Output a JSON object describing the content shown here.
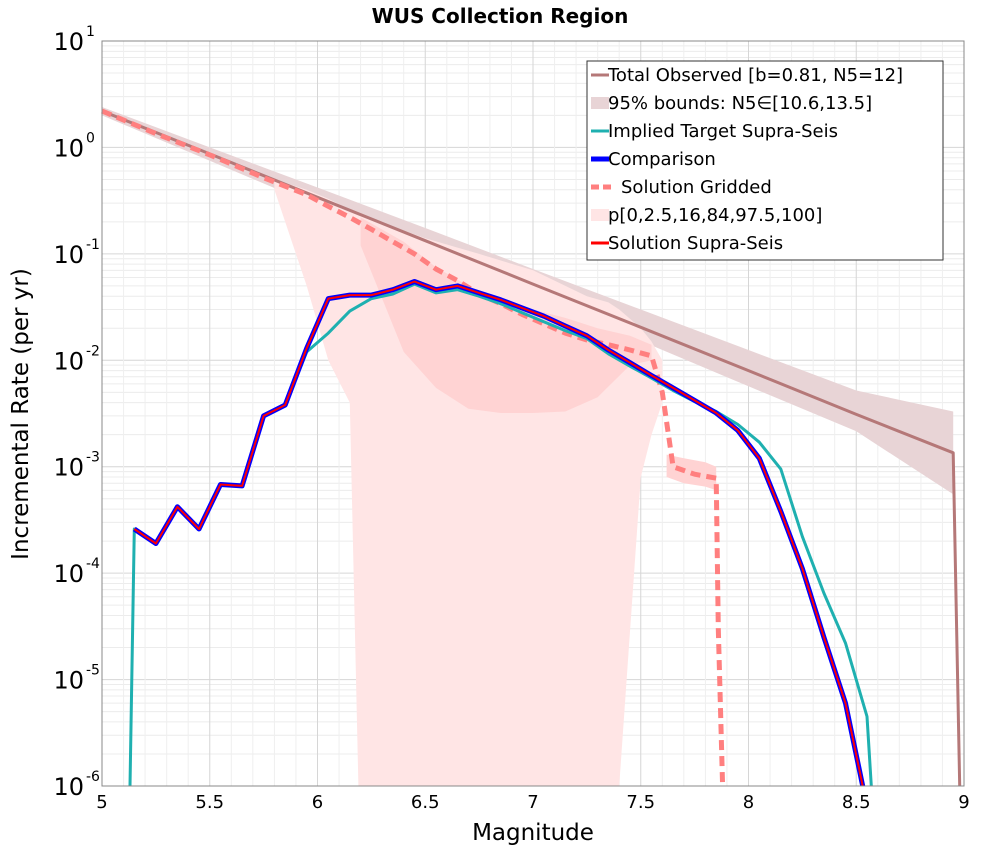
{
  "chart_data": {
    "type": "line",
    "title": "WUS Collection Region",
    "xlabel": "Magnitude",
    "ylabel": "Incremental Rate (per yr)",
    "xlim": [
      5,
      9
    ],
    "ylim_exponents": [
      -6,
      1
    ],
    "y_scale": "log",
    "x_ticks": [
      "5",
      "5.5",
      "6",
      "6.5",
      "7",
      "7.5",
      "8",
      "8.5",
      "9"
    ],
    "y_ticks": [
      {
        "base": "10",
        "exp": "-6",
        "value": 1e-06
      },
      {
        "base": "10",
        "exp": "-5",
        "value": 1e-05
      },
      {
        "base": "10",
        "exp": "-4",
        "value": 0.0001
      },
      {
        "base": "10",
        "exp": "-3",
        "value": 0.001
      },
      {
        "base": "10",
        "exp": "-2",
        "value": 0.01
      },
      {
        "base": "10",
        "exp": "-1",
        "value": 0.1
      },
      {
        "base": "10",
        "exp": "0",
        "value": 1
      },
      {
        "base": "10",
        "exp": "1",
        "value": 10
      }
    ],
    "grid": true,
    "legend_position": "top-right",
    "series": [
      {
        "name": "Total Observed [b=0.81, N5=12]",
        "color": "#b57878",
        "style": "solid",
        "x": [
          5.0,
          5.5,
          6.0,
          6.5,
          7.0,
          7.5,
          8.0,
          8.5,
          8.95,
          8.98
        ],
        "y": [
          2.2,
          0.87,
          0.34,
          0.133,
          0.052,
          0.0204,
          0.008,
          0.0031,
          0.00135,
          1e-06
        ]
      },
      {
        "name": "Implied Target Supra-Seis",
        "color": "#1fb0b0",
        "style": "solid",
        "x": [
          5.13,
          5.15,
          5.25,
          5.35,
          5.45,
          5.55,
          5.65,
          5.75,
          5.85,
          5.95,
          6.05,
          6.15,
          6.25,
          6.35,
          6.45,
          6.55,
          6.65,
          6.75,
          6.85,
          6.95,
          7.05,
          7.15,
          7.25,
          7.35,
          7.45,
          7.55,
          7.65,
          7.75,
          7.85,
          7.95,
          8.05,
          8.15,
          8.25,
          8.35,
          8.45,
          8.55,
          8.57
        ],
        "y": [
          1e-06,
          0.00026,
          0.00019,
          0.00042,
          0.00026,
          0.00068,
          0.00066,
          0.003,
          0.0038,
          0.012,
          0.018,
          0.029,
          0.038,
          0.042,
          0.052,
          0.043,
          0.046,
          0.04,
          0.034,
          0.028,
          0.023,
          0.019,
          0.016,
          0.0115,
          0.0088,
          0.0068,
          0.0052,
          0.0041,
          0.0033,
          0.0025,
          0.0017,
          0.00095,
          0.00022,
          6.5e-05,
          2.2e-05,
          4.5e-06,
          1e-06
        ]
      },
      {
        "name": "Comparison",
        "color": "#0000ff",
        "style": "solid",
        "x": [
          5.15,
          5.25,
          5.35,
          5.45,
          5.55,
          5.65,
          5.75,
          5.85,
          5.95,
          6.05,
          6.15,
          6.25,
          6.35,
          6.45,
          6.55,
          6.65,
          6.75,
          6.85,
          6.95,
          7.05,
          7.15,
          7.25,
          7.35,
          7.45,
          7.55,
          7.65,
          7.75,
          7.85,
          7.95,
          8.05,
          8.15,
          8.25,
          8.35,
          8.45,
          8.53
        ],
        "y": [
          0.00026,
          0.00019,
          0.00042,
          0.00026,
          0.00068,
          0.00066,
          0.003,
          0.0038,
          0.013,
          0.038,
          0.041,
          0.041,
          0.046,
          0.055,
          0.046,
          0.05,
          0.043,
          0.037,
          0.031,
          0.026,
          0.021,
          0.017,
          0.0125,
          0.0095,
          0.0072,
          0.0055,
          0.0042,
          0.0032,
          0.0022,
          0.0012,
          0.00038,
          0.00011,
          2.5e-05,
          6e-06,
          1e-06
        ]
      },
      {
        "name": "Solution Gridded",
        "color": "#ff7f7f",
        "style": "dashed",
        "x": [
          5.0,
          5.25,
          5.5,
          5.75,
          5.95,
          6.05,
          6.15,
          6.25,
          6.35,
          6.45,
          6.55,
          6.65,
          6.75,
          6.85,
          6.95,
          7.05,
          7.15,
          7.25,
          7.35,
          7.45,
          7.55,
          7.6,
          7.65,
          7.75,
          7.85,
          7.86,
          7.88
        ],
        "y": [
          2.2,
          1.35,
          0.85,
          0.52,
          0.36,
          0.28,
          0.22,
          0.17,
          0.13,
          0.1,
          0.072,
          0.056,
          0.042,
          0.034,
          0.027,
          0.022,
          0.018,
          0.0155,
          0.014,
          0.0125,
          0.011,
          0.005,
          0.001,
          0.00085,
          0.00078,
          3e-05,
          1e-06
        ]
      },
      {
        "name": "Solution Supra-Seis",
        "color": "#ff0000",
        "style": "solid",
        "x": [
          5.15,
          5.25,
          5.35,
          5.45,
          5.55,
          5.65,
          5.75,
          5.85,
          5.95,
          6.05,
          6.15,
          6.25,
          6.35,
          6.45,
          6.55,
          6.65,
          6.75,
          6.85,
          6.95,
          7.05,
          7.15,
          7.25,
          7.35,
          7.45,
          7.55,
          7.65,
          7.75,
          7.85,
          7.95,
          8.05,
          8.15,
          8.25,
          8.35,
          8.45,
          8.53
        ],
        "y": [
          0.00026,
          0.00019,
          0.00042,
          0.00026,
          0.00068,
          0.00066,
          0.003,
          0.0038,
          0.013,
          0.038,
          0.041,
          0.041,
          0.046,
          0.055,
          0.046,
          0.05,
          0.043,
          0.037,
          0.031,
          0.026,
          0.021,
          0.017,
          0.0125,
          0.0095,
          0.0072,
          0.0055,
          0.0042,
          0.0032,
          0.0022,
          0.0012,
          0.00038,
          0.00011,
          2.5e-05,
          6e-06,
          1e-06
        ]
      }
    ],
    "bands": [
      {
        "name": "95% bounds: N5∈[10.6,13.5]",
        "color": "#e8d4d6",
        "x": [
          5.0,
          5.5,
          6.0,
          6.5,
          7.0,
          7.5,
          8.0,
          8.5,
          8.95
        ],
        "lower": [
          2.0,
          0.75,
          0.28,
          0.105,
          0.04,
          0.0152,
          0.0057,
          0.00215,
          0.00055
        ],
        "upper": [
          2.4,
          1.0,
          0.42,
          0.175,
          0.072,
          0.03,
          0.0125,
          0.0052,
          0.0033
        ]
      },
      {
        "name": "p[0,2.5,16,84,97.5,100]",
        "color": "#ffe5e5",
        "x": [
          5.8,
          5.95,
          6.05,
          6.15,
          6.19,
          6.35,
          6.5,
          6.75,
          7.0,
          7.25,
          7.35,
          7.4,
          7.5,
          7.55,
          7.6
        ],
        "lower": [
          0.4,
          0.05,
          0.01,
          0.004,
          1e-06,
          1e-06,
          1e-06,
          1e-06,
          1e-06,
          1e-06,
          1e-06,
          1e-06,
          0.0008,
          0.002,
          0.004
        ],
        "upper": [
          0.5,
          0.4,
          0.33,
          0.26,
          0.24,
          0.18,
          0.14,
          0.1,
          0.07,
          0.04,
          0.035,
          0.03,
          0.02,
          0.015,
          0.01
        ]
      },
      {
        "name": "",
        "color": "#ffd3d3",
        "x": [
          6.2,
          6.4,
          6.55,
          6.7,
          6.85,
          7.0,
          7.15,
          7.3,
          7.45,
          7.55
        ],
        "lower": [
          0.12,
          0.012,
          0.0055,
          0.0035,
          0.0032,
          0.0032,
          0.0033,
          0.0045,
          0.009,
          0.01
        ],
        "upper": [
          0.22,
          0.13,
          0.075,
          0.05,
          0.036,
          0.03,
          0.025,
          0.02,
          0.017,
          0.014
        ]
      },
      {
        "name": "",
        "color": "#ffd3d3",
        "x": [
          7.62,
          7.7,
          7.8,
          7.85
        ],
        "lower": [
          0.0008,
          0.0007,
          0.00065,
          0.0006
        ],
        "upper": [
          0.0013,
          0.0012,
          0.0011,
          0.001
        ]
      }
    ],
    "legend": [
      {
        "label": "Total Observed [b=0.81, N5=12]",
        "kind": "line",
        "color": "#b57878"
      },
      {
        "label": "95% bounds: N5∈[10.6,13.5]",
        "kind": "band",
        "color": "#e8d4d6"
      },
      {
        "label": "Implied Target Supra-Seis",
        "kind": "line",
        "color": "#1fb0b0"
      },
      {
        "label": "Comparison",
        "kind": "thick",
        "color": "#0000ff"
      },
      {
        "label": "Solution Gridded",
        "kind": "dashed",
        "color": "#ff7f7f"
      },
      {
        "label": "p[0,2.5,16,84,97.5,100]",
        "kind": "band",
        "color": "#ffe5e5"
      },
      {
        "label": "Solution Supra-Seis",
        "kind": "line",
        "color": "#ff0000"
      }
    ]
  }
}
